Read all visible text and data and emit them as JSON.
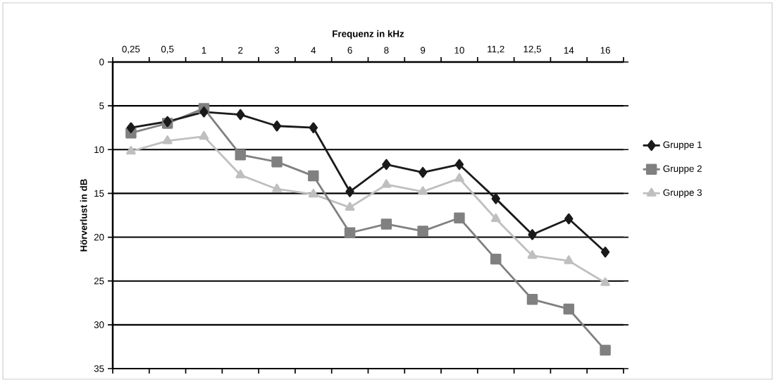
{
  "chart_data": {
    "type": "line",
    "xlabel": "Frequenz in kHz",
    "ylabel": "Hörverlust in dB",
    "categories": [
      "0,25",
      "0,5",
      "1",
      "2",
      "3",
      "4",
      "6",
      "8",
      "9",
      "10",
      "11,2",
      "12,5",
      "14",
      "16"
    ],
    "series": [
      {
        "name": "Gruppe 1",
        "color": "#1a1a1a",
        "marker": "diamond",
        "values": [
          7.5,
          6.8,
          5.7,
          6.0,
          7.3,
          7.5,
          14.8,
          11.7,
          12.6,
          11.7,
          15.6,
          19.7,
          17.9,
          21.7
        ]
      },
      {
        "name": "Gruppe 2",
        "color": "#808080",
        "marker": "square",
        "values": [
          8.1,
          7.0,
          5.3,
          10.6,
          11.4,
          13.0,
          19.5,
          18.5,
          19.3,
          17.8,
          22.5,
          27.1,
          28.2,
          32.9
        ]
      },
      {
        "name": "Gruppe 3",
        "color": "#bfbfbf",
        "marker": "triangle",
        "values": [
          10.2,
          9.0,
          8.5,
          12.9,
          14.5,
          15.1,
          16.6,
          14.0,
          14.8,
          13.3,
          17.9,
          22.1,
          22.7,
          25.2
        ]
      }
    ],
    "ylim": [
      35,
      0
    ],
    "yticks": [
      0,
      5,
      10,
      15,
      20,
      25,
      30,
      35
    ],
    "grid": "y",
    "legend": "right",
    "line_style": "solid"
  }
}
